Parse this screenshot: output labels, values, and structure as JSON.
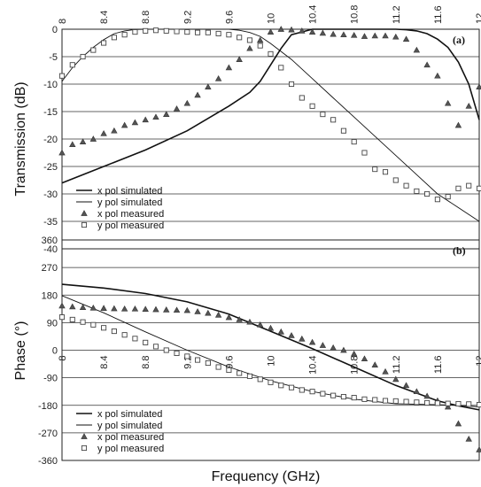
{
  "chart_data": [
    {
      "type": "line",
      "panel_label": "(a)",
      "ylabel": "Transmission (dB)",
      "xlim": [
        8,
        12
      ],
      "ylim": [
        -40,
        0
      ],
      "x_ticks": [
        "8",
        "8.4",
        "8.8",
        "9.2",
        "9.6",
        "10",
        "10.4",
        "10.8",
        "11.2",
        "11.6",
        "12"
      ],
      "y_ticks": [
        "0",
        "-5",
        "-10",
        "-15",
        "-20",
        "-25",
        "-30",
        "-35",
        "-40"
      ],
      "grid": true,
      "legend_position": "bottom-left",
      "series": [
        {
          "name": "x pol simulated",
          "style": "line-thick",
          "x": [
            8.0,
            8.4,
            8.8,
            9.2,
            9.6,
            9.8,
            9.9,
            10.0,
            10.1,
            10.2,
            10.4,
            10.8,
            11.2,
            11.3,
            11.4,
            11.5,
            11.6,
            11.7,
            11.8,
            11.9,
            12.0
          ],
          "y": [
            -28,
            -25,
            -22,
            -18.5,
            -14,
            -11.5,
            -9.5,
            -6.5,
            -3.5,
            -1,
            0,
            0,
            0,
            -0.1,
            -0.3,
            -0.8,
            -1.8,
            -3.3,
            -6,
            -10,
            -16.5
          ]
        },
        {
          "name": "y pol simulated",
          "style": "line-thin",
          "x": [
            8.0,
            8.1,
            8.2,
            8.3,
            8.4,
            8.5,
            8.6,
            8.7,
            8.8,
            9.2,
            9.6,
            9.7,
            9.8,
            9.9,
            10.0,
            10.2,
            10.4,
            10.6,
            10.8,
            11.0,
            11.2,
            11.4,
            11.6,
            11.8,
            12.0
          ],
          "y": [
            -9.5,
            -7,
            -5,
            -3.3,
            -1.9,
            -0.8,
            -0.3,
            -0.05,
            0,
            0,
            0,
            -0.2,
            -0.6,
            -1.3,
            -2.6,
            -5.5,
            -9,
            -12.5,
            -16,
            -19.5,
            -23,
            -26.5,
            -30,
            -32.5,
            -35
          ]
        },
        {
          "name": "x pol measured",
          "style": "triangle",
          "x": [
            8.0,
            8.1,
            8.2,
            8.3,
            8.4,
            8.5,
            8.6,
            8.7,
            8.8,
            8.9,
            9.0,
            9.1,
            9.2,
            9.3,
            9.4,
            9.5,
            9.6,
            9.7,
            9.8,
            9.9,
            10.0,
            10.1,
            10.2,
            10.3,
            10.4,
            10.5,
            10.6,
            10.7,
            10.8,
            10.9,
            11.0,
            11.1,
            11.2,
            11.3,
            11.4,
            11.5,
            11.6,
            11.7,
            11.8,
            11.9,
            12.0
          ],
          "y": [
            -22.5,
            -21,
            -20.5,
            -20,
            -19,
            -18.5,
            -17.5,
            -17,
            -16.5,
            -16,
            -15.5,
            -14.5,
            -13.5,
            -12,
            -10.5,
            -9,
            -7,
            -5.5,
            -3.5,
            -2,
            -0.5,
            0,
            -0.1,
            -0.3,
            -0.5,
            -0.7,
            -0.9,
            -1,
            -1.1,
            -1.3,
            -1.2,
            -1.2,
            -1.4,
            -1.8,
            -3.8,
            -6.5,
            -8.5,
            -13.5,
            -17.5,
            -14,
            -10.5
          ]
        },
        {
          "name": "y pol measured",
          "style": "square",
          "x": [
            8.0,
            8.1,
            8.2,
            8.3,
            8.4,
            8.5,
            8.6,
            8.7,
            8.8,
            8.9,
            9.0,
            9.1,
            9.2,
            9.3,
            9.4,
            9.5,
            9.6,
            9.7,
            9.8,
            9.9,
            10.0,
            10.1,
            10.2,
            10.3,
            10.4,
            10.5,
            10.6,
            10.7,
            10.8,
            10.9,
            11.0,
            11.1,
            11.2,
            11.3,
            11.4,
            11.5,
            11.6,
            11.7,
            11.8,
            11.9,
            12.0
          ],
          "y": [
            -8.5,
            -6.5,
            -5,
            -3.8,
            -2.5,
            -1.5,
            -1,
            -0.5,
            -0.3,
            -0.2,
            -0.3,
            -0.4,
            -0.5,
            -0.6,
            -0.6,
            -0.8,
            -1,
            -1.5,
            -2,
            -3,
            -4.5,
            -7,
            -10,
            -12.5,
            -14,
            -15.5,
            -16.5,
            -18.5,
            -20.5,
            -22.5,
            -25.5,
            -26,
            -27.5,
            -28.5,
            -29.5,
            -30,
            -31,
            -30.5,
            -29,
            -28.5,
            -29
          ]
        }
      ]
    },
    {
      "type": "line",
      "panel_label": "(b)",
      "ylabel": "Phase (°)",
      "xlabel": "Frequency (GHz)",
      "xlim": [
        8,
        12
      ],
      "ylim": [
        -360,
        360
      ],
      "x_ticks": [
        "8",
        "8.4",
        "8.8",
        "9.2",
        "9.6",
        "10",
        "10.4",
        "10.8",
        "11.2",
        "11.6",
        "12"
      ],
      "y_ticks": [
        "360",
        "270",
        "180",
        "90",
        "0",
        "-90",
        "-180",
        "-270",
        "-360"
      ],
      "grid": true,
      "legend_position": "bottom-left",
      "series": [
        {
          "name": "x pol simulated",
          "style": "line-thick",
          "x": [
            8.0,
            8.4,
            8.8,
            9.2,
            9.6,
            10.0,
            10.4,
            10.8,
            11.2,
            11.6,
            11.8,
            12.0
          ],
          "y": [
            215,
            203,
            185,
            158,
            118,
            62,
            5,
            -55,
            -115,
            -165,
            -182,
            -195
          ]
        },
        {
          "name": "y pol simulated",
          "style": "line-thin",
          "x": [
            8.0,
            8.4,
            8.8,
            9.2,
            9.6,
            10.0,
            10.4,
            10.8,
            11.2,
            11.6,
            11.8,
            12.0
          ],
          "y": [
            178,
            122,
            60,
            0,
            -55,
            -100,
            -135,
            -160,
            -175,
            -178,
            -180,
            -185
          ]
        },
        {
          "name": "x pol measured",
          "style": "triangle",
          "x": [
            8.0,
            8.1,
            8.2,
            8.3,
            8.4,
            8.5,
            8.6,
            8.7,
            8.8,
            8.9,
            9.0,
            9.1,
            9.2,
            9.3,
            9.4,
            9.5,
            9.6,
            9.7,
            9.8,
            9.9,
            10.0,
            10.1,
            10.2,
            10.3,
            10.4,
            10.5,
            10.6,
            10.7,
            10.8,
            10.9,
            11.0,
            11.1,
            11.2,
            11.3,
            11.4,
            11.5,
            11.6,
            11.7,
            11.8,
            11.9,
            12.0
          ],
          "y": [
            145,
            142,
            140,
            138,
            137,
            136,
            135,
            135,
            134,
            133,
            132,
            131,
            130,
            126,
            121,
            115,
            107,
            100,
            92,
            83,
            72,
            60,
            48,
            37,
            26,
            16,
            8,
            0,
            -12,
            -28,
            -48,
            -70,
            -95,
            -115,
            -135,
            -150,
            -165,
            -185,
            -240,
            -290,
            -325
          ]
        },
        {
          "name": "y pol measured",
          "style": "square",
          "x": [
            8.0,
            8.1,
            8.2,
            8.3,
            8.4,
            8.5,
            8.6,
            8.7,
            8.8,
            8.9,
            9.0,
            9.1,
            9.2,
            9.3,
            9.4,
            9.5,
            9.6,
            9.7,
            9.8,
            9.9,
            10.0,
            10.1,
            10.2,
            10.3,
            10.4,
            10.5,
            10.6,
            10.7,
            10.8,
            10.9,
            11.0,
            11.1,
            11.2,
            11.3,
            11.4,
            11.5,
            11.6,
            11.7,
            11.8,
            11.9,
            12.0
          ],
          "y": [
            108,
            100,
            92,
            83,
            73,
            62,
            50,
            38,
            25,
            12,
            0,
            -10,
            -20,
            -32,
            -42,
            -55,
            -65,
            -75,
            -85,
            -95,
            -105,
            -115,
            -122,
            -130,
            -135,
            -142,
            -148,
            -152,
            -155,
            -160,
            -162,
            -165,
            -166,
            -168,
            -170,
            -172,
            -173,
            -174,
            -175,
            -176,
            -178
          ]
        }
      ]
    }
  ]
}
